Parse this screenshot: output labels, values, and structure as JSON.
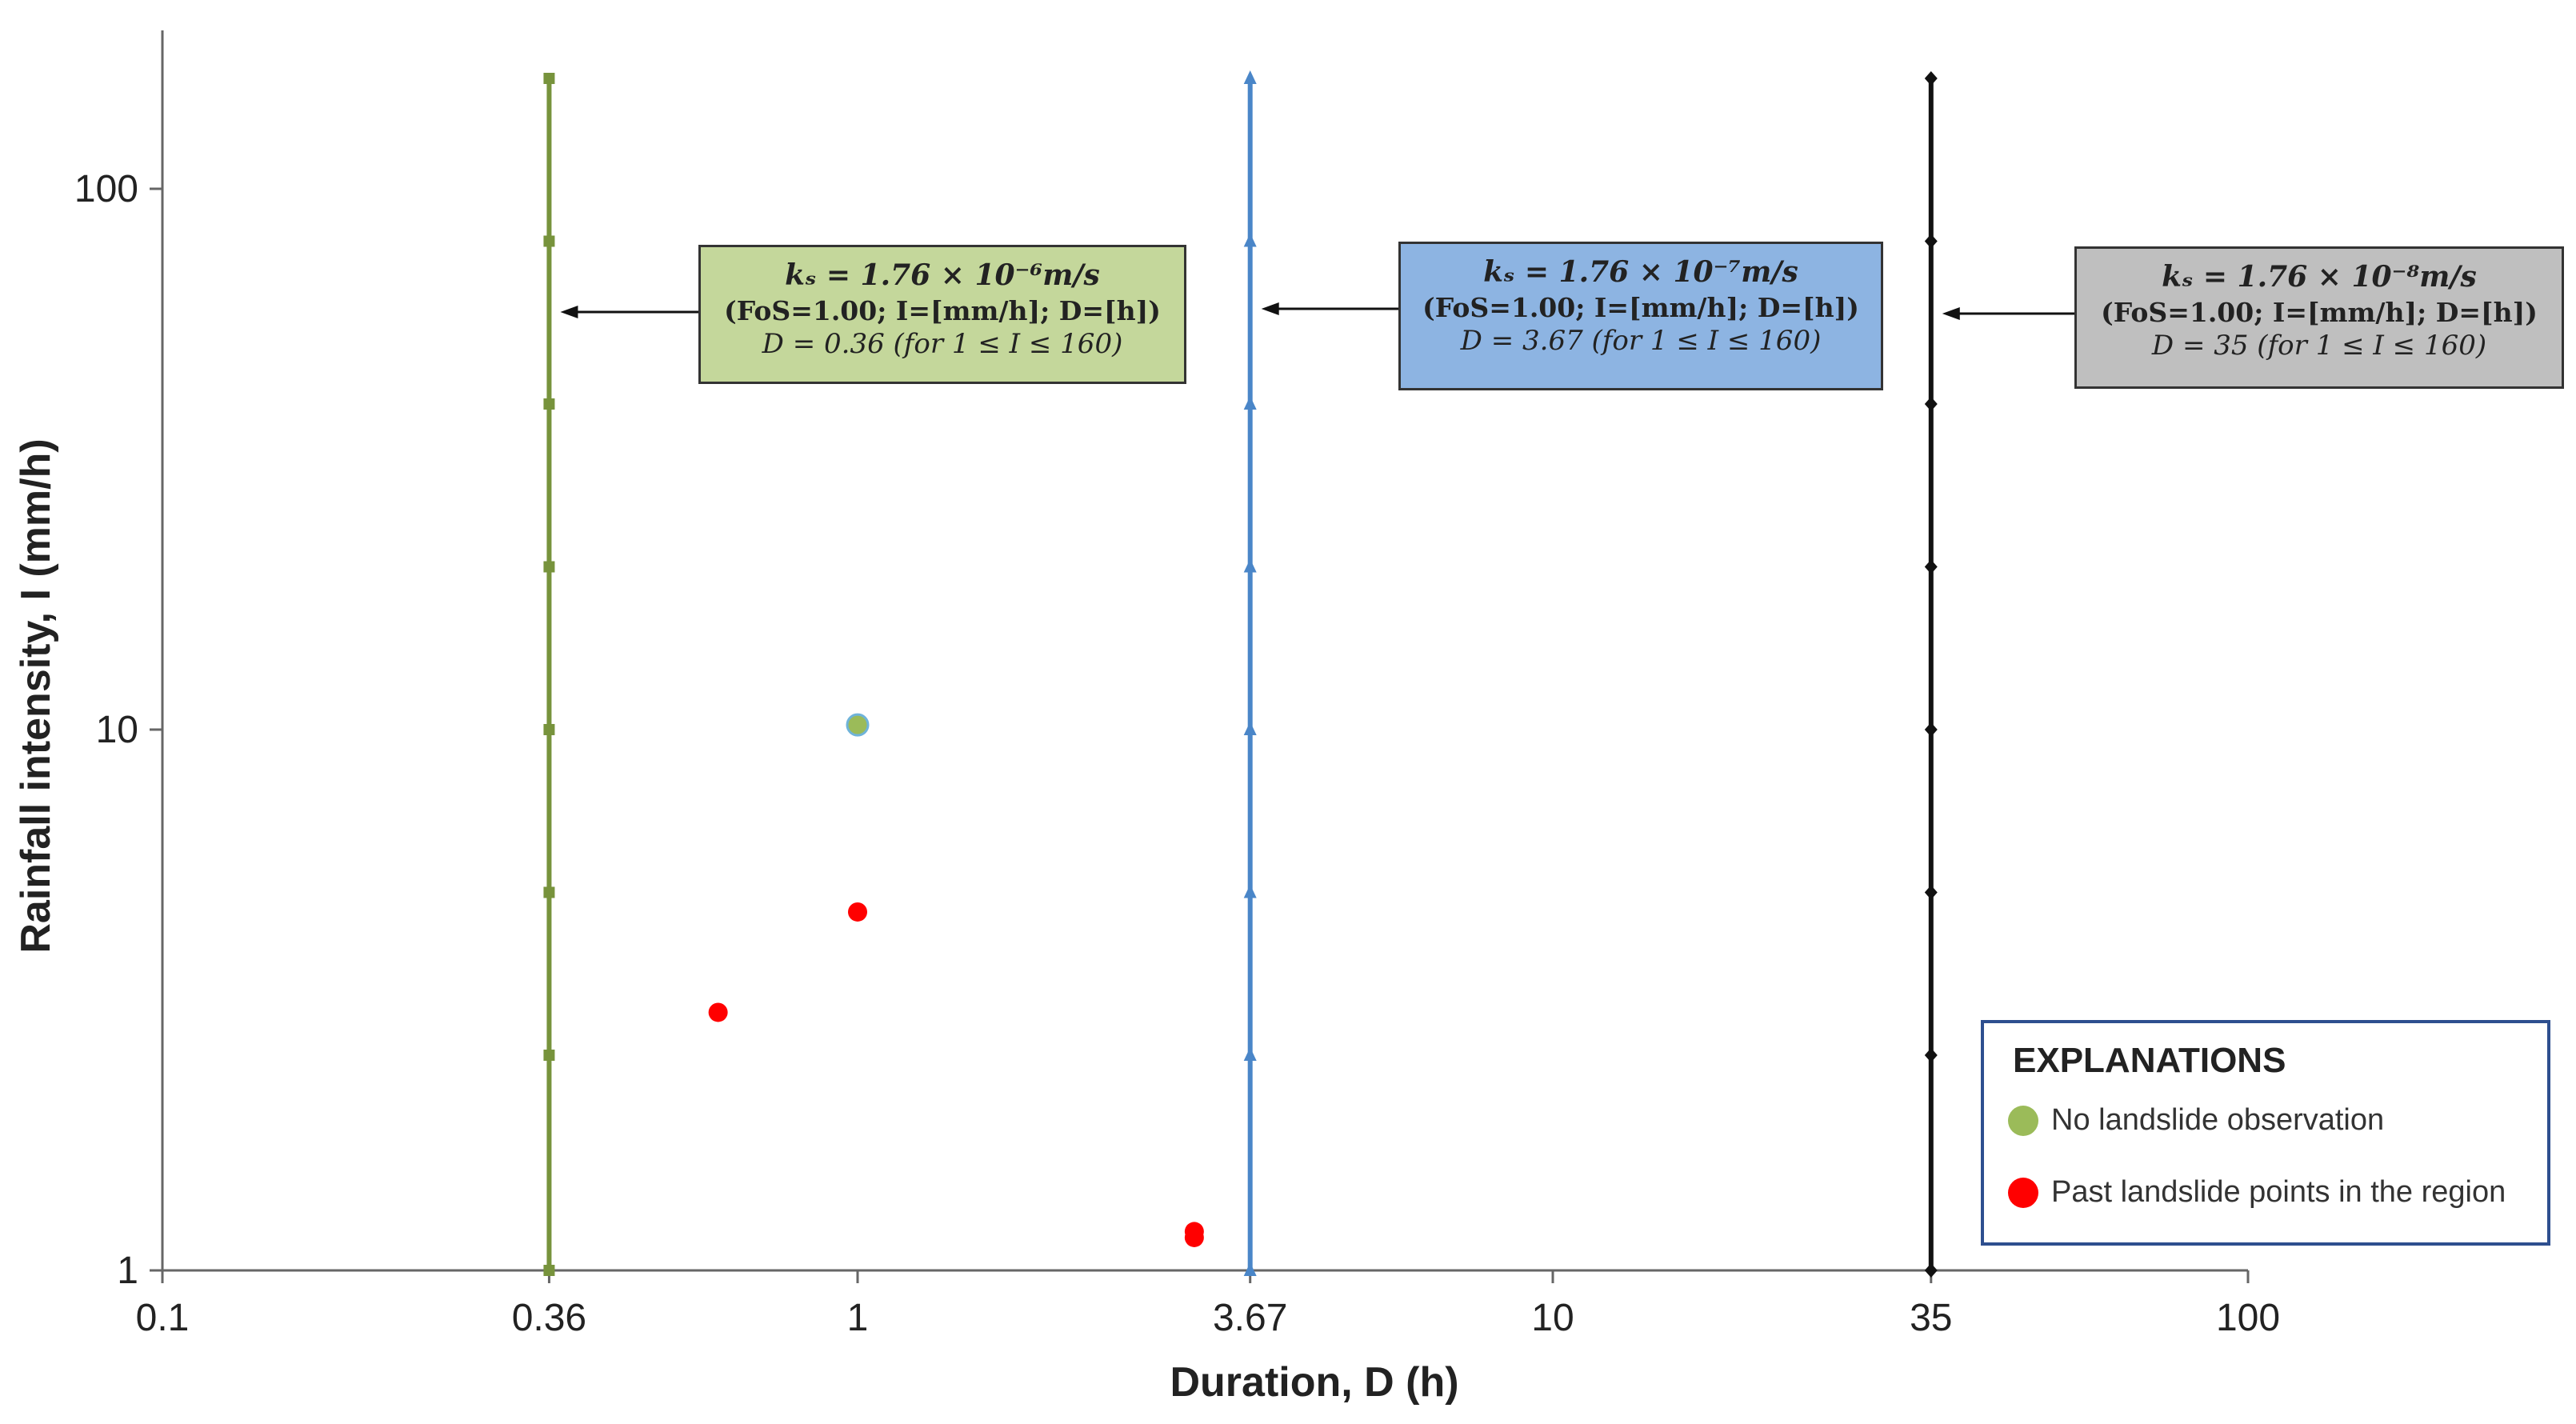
{
  "chart_data": {
    "type": "scatter",
    "title": "",
    "xlabel": "Duration,  D (h)",
    "ylabel": "Rainfall intensity, I (mm/h)",
    "x_scale": "log",
    "y_scale": "log",
    "xlim": [
      0.1,
      100
    ],
    "ylim": [
      1,
      160
    ],
    "x_ticks": [
      0.1,
      0.36,
      1,
      3.67,
      10,
      35,
      100
    ],
    "x_tick_labels": [
      "0.1",
      "0.36",
      "1",
      "3.67",
      "10",
      "35",
      "100"
    ],
    "y_ticks": [
      1,
      10,
      100
    ],
    "y_tick_labels": [
      "1",
      "10",
      "100"
    ],
    "grid": false,
    "threshold_lines": [
      {
        "D": 0.36,
        "color": "#77933c",
        "I_points": [
          1,
          2.5,
          5,
          10,
          20,
          40,
          80,
          160
        ]
      },
      {
        "D": 3.67,
        "color": "#4a86c8",
        "I_points": [
          1,
          2.5,
          5,
          10,
          20,
          40,
          80,
          160
        ]
      },
      {
        "D": 35,
        "color": "#111111",
        "I_points": [
          1,
          2.5,
          5,
          10,
          20,
          40,
          80,
          160
        ]
      }
    ],
    "series": [
      {
        "name": "No landslide observation",
        "color": "#9bbb59",
        "points": [
          {
            "x": 1,
            "y": 10.2
          }
        ]
      },
      {
        "name": "Past landslide points in the region",
        "color": "#ff0000",
        "points": [
          {
            "x": 0.63,
            "y": 3.0
          },
          {
            "x": 1,
            "y": 4.6
          },
          {
            "x": 3.05,
            "y": 1.18
          },
          {
            "x": 3.05,
            "y": 1.15
          }
        ]
      }
    ],
    "annotations": [
      {
        "line1": "kₛ = 1.76 × 10⁻⁶m/s",
        "line2": "(FoS=1.00; I=[mm/h]; D=[h])",
        "line3": "D = 0.36 (for 1 ≤ I ≤ 160)",
        "color": "#c4d79b"
      },
      {
        "line1": "kₛ = 1.76 × 10⁻⁷m/s",
        "line2": "(FoS=1.00; I=[mm/h]; D=[h])",
        "line3": "D = 3.67 (for 1 ≤ I ≤ 160)",
        "color": "#8db4e2"
      },
      {
        "line1": "kₛ = 1.76 × 10⁻⁸m/s",
        "line2": "(FoS=1.00; I=[mm/h]; D=[h])",
        "line3": "D = 35 (for 1 ≤ I ≤ 160)",
        "color": "#bfbfbf"
      }
    ],
    "legend": {
      "title": "EXPLANATIONS",
      "placement": "bottom-right",
      "entries": [
        "No landslide observation",
        "Past landslide points in the region"
      ]
    }
  }
}
